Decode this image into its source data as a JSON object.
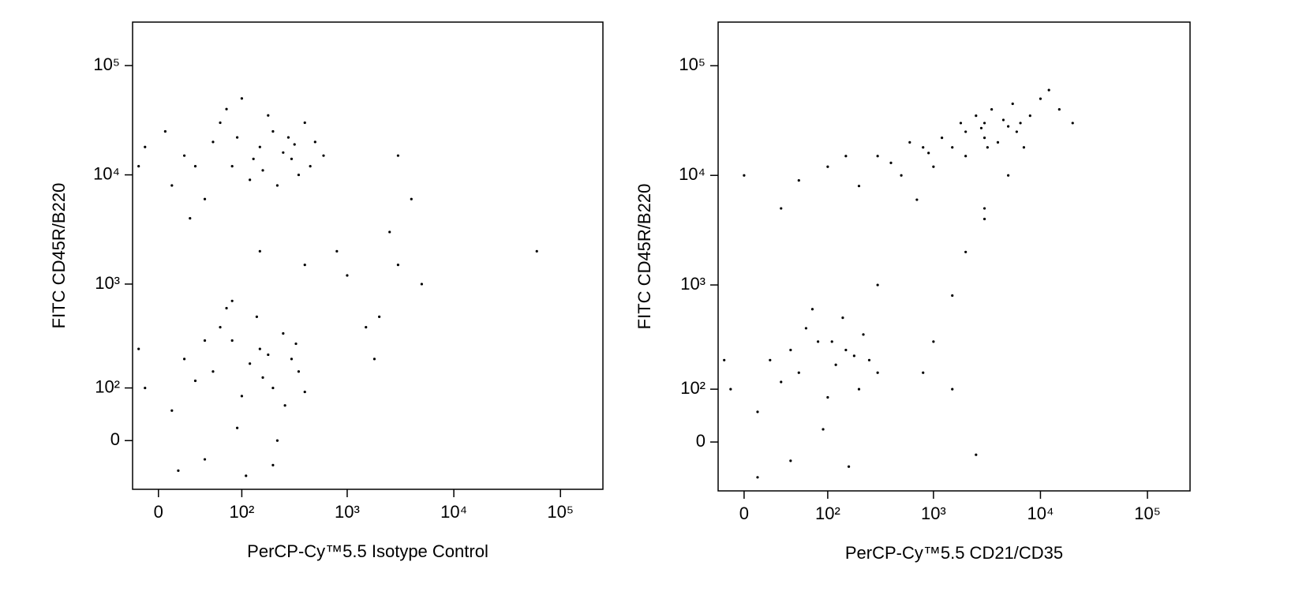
{
  "chart_data": [
    {
      "type": "scatter",
      "xscale": "biexponential",
      "yscale": "biexponential",
      "color": "#000000",
      "xlabel": "PerCP-Cy™5.5 Isotype Control",
      "ylabel": "FITC CD45R/B220",
      "xlim": [
        -20,
        250000
      ],
      "ylim": [
        -90,
        250000
      ],
      "xticks": [
        0,
        {
          "value": 100,
          "label": "10²"
        },
        {
          "value": 1000,
          "label": "10³"
        },
        {
          "value": 10000,
          "label": "10⁴"
        },
        {
          "value": 100000,
          "label": "10⁵"
        }
      ],
      "yticks": [
        0,
        {
          "value": 100,
          "label": "10²"
        },
        {
          "value": 1000,
          "label": "10³"
        },
        {
          "value": 10000,
          "label": "10⁴"
        },
        {
          "value": 100000,
          "label": "10⁵"
        }
      ],
      "x": [
        20,
        50,
        80,
        150,
        200,
        300,
        400,
        10,
        60,
        120,
        250,
        350,
        90,
        30,
        180,
        500,
        -10,
        -15,
        40,
        220,
        130,
        70,
        280,
        450,
        100,
        160,
        320,
        5,
        600,
        25,
        20,
        50,
        80,
        150,
        200,
        300,
        10,
        60,
        120,
        250,
        100,
        180,
        30,
        40,
        90,
        220,
        -15,
        -10,
        140,
        350,
        70,
        260,
        110,
        40,
        160,
        330,
        15,
        200,
        80,
        400,
        1000,
        2000,
        3000,
        5000,
        1500,
        800,
        4000,
        60000,
        2500,
        1800,
        150,
        400,
        3000
      ],
      "values": [
        15000,
        20000,
        12000,
        18000,
        25000,
        14000,
        30000,
        8000,
        30000,
        9000,
        16000,
        10000,
        22000,
        12000,
        35000,
        20000,
        18000,
        12000,
        6000,
        8000,
        14000,
        40000,
        22000,
        12000,
        50000,
        11000,
        19000,
        25000,
        15000,
        4000,
        200,
        150,
        300,
        250,
        100,
        200,
        50,
        400,
        180,
        350,
        80,
        220,
        120,
        -30,
        20,
        0,
        250,
        100,
        500,
        150,
        600,
        60,
        -60,
        300,
        130,
        280,
        -50,
        -40,
        700,
        90,
        1200,
        500,
        1500,
        1000,
        400,
        2000,
        6000,
        2000,
        3000,
        200,
        2000,
        1500,
        15000
      ]
    },
    {
      "type": "scatter",
      "xscale": "biexponential",
      "yscale": "biexponential",
      "color": "#000000",
      "xlabel": "PerCP-Cy™5.5 CD21/CD35",
      "ylabel": "FITC CD45R/B220",
      "xlim": [
        -20,
        250000
      ],
      "ylim": [
        -90,
        250000
      ],
      "xticks": [
        0,
        {
          "value": 100,
          "label": "10²"
        },
        {
          "value": 1000,
          "label": "10³"
        },
        {
          "value": 10000,
          "label": "10⁴"
        },
        {
          "value": 100000,
          "label": "10⁵"
        }
      ],
      "yticks": [
        0,
        {
          "value": 100,
          "label": "10²"
        },
        {
          "value": 1000,
          "label": "10³"
        },
        {
          "value": 10000,
          "label": "10⁴"
        },
        {
          "value": 100000,
          "label": "10⁵"
        }
      ],
      "x": [
        2000,
        3000,
        4000,
        2500,
        5000,
        1500,
        3500,
        6000,
        8000,
        10000,
        2000,
        1200,
        4500,
        3000,
        7000,
        15000,
        20000,
        2800,
        1800,
        5500,
        12000,
        900,
        3200,
        6500,
        100,
        300,
        500,
        800,
        200,
        50,
        400,
        600,
        150,
        0,
        1000,
        30,
        700,
        20,
        50,
        80,
        150,
        200,
        250,
        10,
        60,
        120,
        -15,
        100,
        180,
        30,
        40,
        90,
        220,
        -10,
        140,
        300,
        70,
        10,
        160,
        110,
        40,
        1500,
        2000,
        1000,
        3000,
        800,
        5000,
        300,
        2500,
        1500,
        3000
      ],
      "values": [
        25000,
        30000,
        20000,
        35000,
        28000,
        18000,
        40000,
        25000,
        35000,
        50000,
        15000,
        22000,
        32000,
        22000,
        18000,
        40000,
        30000,
        27000,
        30000,
        45000,
        60000,
        16000,
        18000,
        30000,
        12000,
        15000,
        10000,
        18000,
        8000,
        9000,
        13000,
        20000,
        15000,
        10000,
        12000,
        5000,
        6000,
        200,
        150,
        300,
        250,
        100,
        200,
        50,
        400,
        180,
        200,
        80,
        220,
        120,
        -30,
        20,
        350,
        100,
        500,
        150,
        600,
        -60,
        -40,
        300,
        250,
        800,
        2000,
        300,
        4000,
        150,
        10000,
        1000,
        -20,
        100,
        5000
      ]
    }
  ]
}
